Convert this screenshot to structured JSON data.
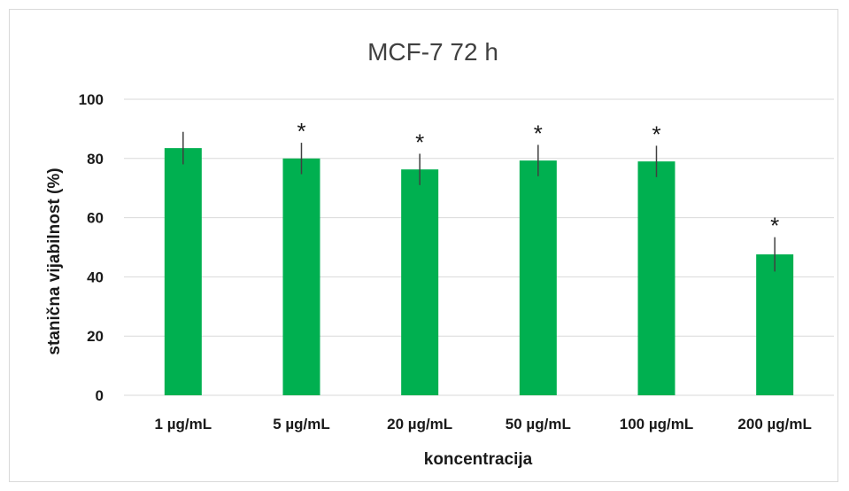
{
  "chart_data": {
    "type": "bar",
    "title": "MCF-7 72 h",
    "xlabel": "koncentracija",
    "ylabel": "stanična vijabilnost (%)",
    "ylim": [
      0,
      100
    ],
    "yticks": [
      0,
      20,
      40,
      60,
      80,
      100
    ],
    "grid": true,
    "categories": [
      "1 µg/mL",
      "5 µg/mL",
      "20 µg/mL",
      "50 µg/mL",
      "100 µg/mL",
      "200 µg/mL"
    ],
    "values": [
      83.5,
      80,
      76.3,
      79.3,
      79,
      47.6
    ],
    "errors": [
      5.5,
      5.3,
      5.3,
      5.3,
      5.3,
      5.8
    ],
    "significance": [
      "",
      "*",
      "*",
      "*",
      "*",
      "*"
    ],
    "color": "#00b050"
  }
}
